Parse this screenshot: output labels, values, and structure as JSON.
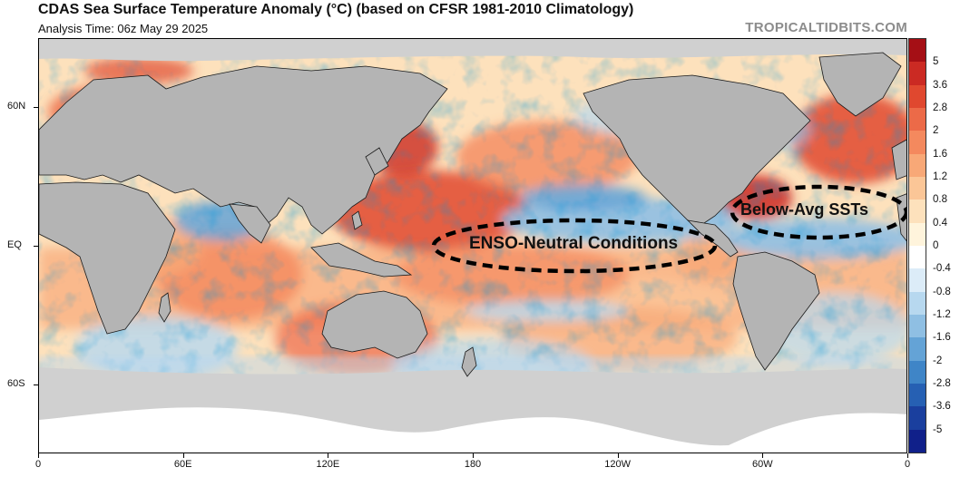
{
  "header": {
    "title": "CDAS Sea Surface Temperature Anomaly (°C) (based on CFSR 1981-2010 Climatology)",
    "subtitle": "Analysis Time: 06z May 29 2025",
    "credit": "TROPICALTIDBITS.COM"
  },
  "axes": {
    "lat_labels": [
      {
        "label": "60N",
        "lat": 60
      },
      {
        "label": "EQ",
        "lat": 0
      },
      {
        "label": "60S",
        "lat": -60
      }
    ],
    "lon_labels": [
      {
        "label": "0",
        "lon": 0
      },
      {
        "label": "60E",
        "lon": 60
      },
      {
        "label": "120E",
        "lon": 120
      },
      {
        "label": "180",
        "lon": 180
      },
      {
        "label": "120W",
        "lon": 240
      },
      {
        "label": "60W",
        "lon": 300
      },
      {
        "label": "0",
        "lon": 360
      }
    ],
    "lat_range": [
      -90,
      90
    ],
    "lon_range": [
      0,
      360
    ]
  },
  "colorbar": {
    "labels": [
      "5",
      "3.6",
      "2.8",
      "2",
      "1.6",
      "1.2",
      "0.8",
      "0.4",
      "0",
      "-0.4",
      "-0.8",
      "-1.2",
      "-1.6",
      "-2",
      "-2.8",
      "-3.6",
      "-5"
    ],
    "colors": [
      "#a50f15",
      "#cb2a23",
      "#e0482f",
      "#ec6a48",
      "#f4895e",
      "#f8a877",
      "#fbc697",
      "#fde1bc",
      "#fff4dc",
      "#ffffff",
      "#dcecf8",
      "#b7d8ef",
      "#8fbfe3",
      "#64a3d6",
      "#3f85c7",
      "#2660b3",
      "#1a3f9e",
      "#10208a"
    ]
  },
  "annotations": [
    {
      "text": "ENSO-Neutral Conditions",
      "lon": 235,
      "lat": 0
    },
    {
      "text": "Below-Avg SSTs",
      "lon": 323,
      "lat": 14
    }
  ],
  "colors": {
    "land": "#b4b4b4",
    "ice": "#d9d9d9",
    "ocean_base": "#fde1bc"
  }
}
